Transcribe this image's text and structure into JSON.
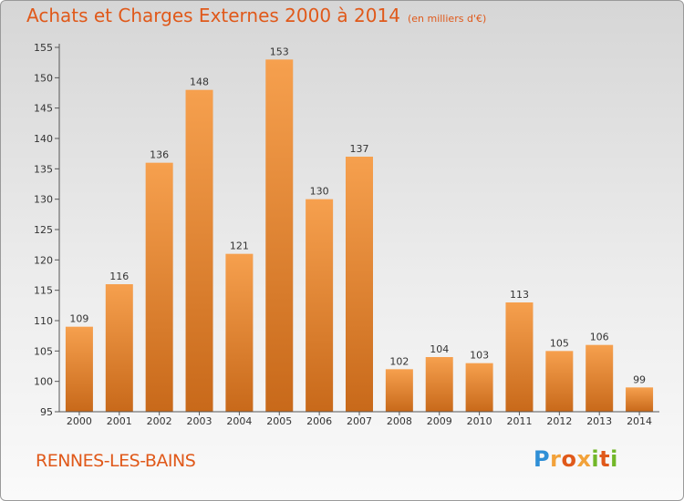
{
  "title": "Achats et Charges Externes 2000 à 2014",
  "unit_note": "(en milliers d'€)",
  "location": "RENNES-LES-BAINS",
  "logo": {
    "text": "Proxiti",
    "colors": [
      "#2f8fd6",
      "#f2a23a",
      "#e0591a",
      "#f2a23a",
      "#72b728",
      "#e0591a",
      "#72b728"
    ]
  },
  "colors": {
    "accent": "#e0591a",
    "bar_light": "#f6a04e",
    "bar_dark": "#c8691a"
  },
  "chart_data": {
    "type": "bar",
    "title": "Achats et Charges Externes 2000 à 2014",
    "xlabel": "",
    "ylabel": "",
    "categories": [
      "2000",
      "2001",
      "2002",
      "2003",
      "2004",
      "2005",
      "2006",
      "2007",
      "2008",
      "2009",
      "2010",
      "2011",
      "2012",
      "2013",
      "2014"
    ],
    "values": [
      109,
      116,
      136,
      148,
      121,
      153,
      130,
      137,
      102,
      104,
      103,
      113,
      105,
      106,
      99
    ],
    "ylim": [
      95,
      155
    ],
    "yticks": [
      95,
      100,
      105,
      110,
      115,
      120,
      125,
      130,
      135,
      140,
      145,
      150,
      155
    ],
    "grid": false
  }
}
